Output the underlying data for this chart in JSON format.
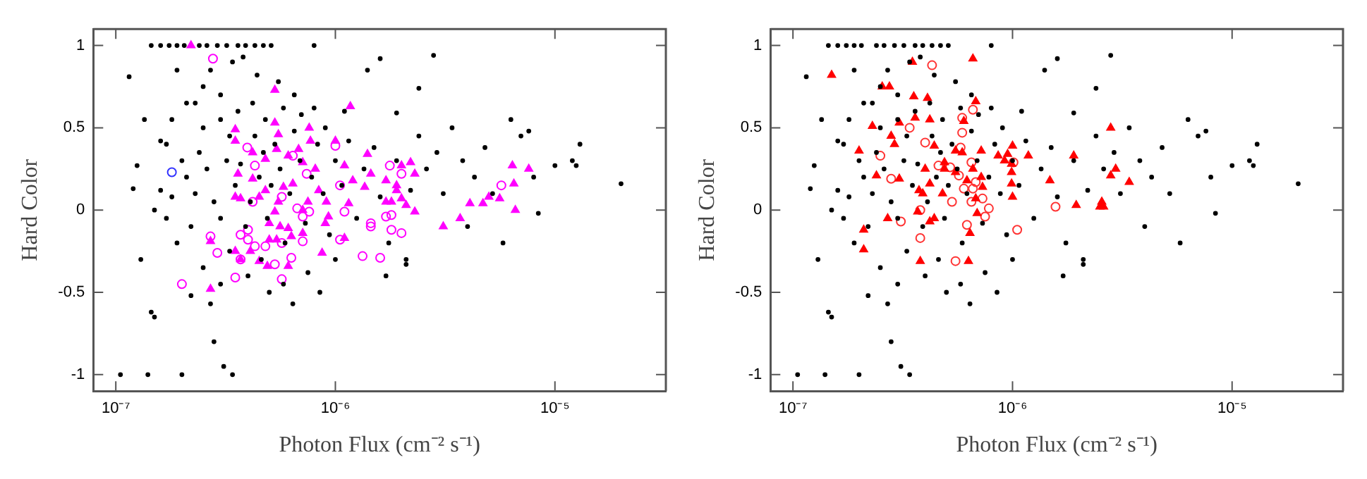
{
  "chart_data": [
    {
      "type": "scatter",
      "xlabel": "Photon Flux (cm⁻² s⁻¹)",
      "ylabel": "Hard Color",
      "log": "x",
      "grid": false,
      "legend": false,
      "xlim": [
        7.9e-08,
        3.2e-05
      ],
      "ylim": [
        -1.1,
        1.1
      ],
      "xticks": [
        {
          "value": 1e-07,
          "label": "10⁻⁷"
        },
        {
          "value": 1e-06,
          "label": "10⁻⁶"
        },
        {
          "value": 1e-05,
          "label": "10⁻⁵"
        }
      ],
      "yticks": [
        -1,
        -0.5,
        0,
        0.5,
        1
      ],
      "series": [
        {
          "color": "#000000",
          "marker": "circle",
          "x": [
            1.45e-07,
            1.6e-07,
            1.75e-07,
            1.9e-07,
            2.05e-07,
            2.4e-07,
            2.6e-07,
            2.9e-07,
            3.2e-07,
            3.6e-07,
            3.9e-07,
            4.3e-07,
            4.7e-07,
            5.1e-07,
            8e-07,
            1.15e-07,
            1.35e-07,
            1.25e-07,
            1.2e-07,
            1.3e-07,
            1.45e-07,
            1.5e-07,
            1.05e-07,
            1.4e-07,
            2e-07,
            3.1e-07,
            3.4e-07,
            2.8e-07,
            2.7e-07,
            2.2e-07,
            1.6e-07,
            1.7e-07,
            1.8e-07,
            1.9e-07,
            2.1e-07,
            2.3e-07,
            2.5e-07,
            2.7e-07,
            3e-07,
            3.4e-07,
            3.8e-07,
            4.4e-07,
            5.5e-07,
            6.5e-07,
            8e-07,
            1.6e-06,
            2.8e-06,
            1.4e-06,
            2.4e-06,
            1.1e-06,
            1.9e-06,
            1.5e-07,
            1.6e-07,
            1.7e-07,
            1.8e-07,
            1.9e-07,
            2e-07,
            2.1e-07,
            2.2e-07,
            2.3e-07,
            2.4e-07,
            2.6e-07,
            2.8e-07,
            3e-07,
            3.2e-07,
            3.3e-07,
            3.5e-07,
            3.7e-07,
            3.9e-07,
            4.1e-07,
            4.3e-07,
            4.5e-07,
            4.7e-07,
            4.9e-07,
            5.1e-07,
            5.3e-07,
            5.6e-07,
            5.9e-07,
            6.2e-07,
            6.5e-07,
            6.9e-07,
            7.3e-07,
            7.8e-07,
            8.3e-07,
            8.8e-07,
            9.4e-07,
            1e-06,
            1.07e-06,
            1.15e-06,
            1.25e-06,
            1.35e-06,
            1.5e-06,
            1.6e-06,
            1.75e-06,
            1.9e-06,
            2.1e-06,
            2.2e-06,
            2.4e-06,
            2.6e-06,
            2.9e-06,
            3.1e-06,
            3.4e-06,
            3.8e-06,
            4e-06,
            4.3e-06,
            4.8e-06,
            5.2e-06,
            5.8e-06,
            6.3e-06,
            7e-06,
            7.6e-06,
            8.4e-06,
            8e-06,
            1e-05,
            1.2e-05,
            1.3e-05,
            1.25e-05,
            2e-05,
            2.5e-07,
            3e-07,
            3.3e-07,
            4e-07,
            4.6e-07,
            5e-07,
            5.8e-07,
            6.4e-07,
            7.5e-07,
            8.5e-07,
            1.7e-06,
            1e-06,
            2.1e-06,
            3.6e-07,
            4.2e-07,
            4.8e-07,
            5.8e-07,
            7e-07,
            3e-07,
            2.5e-07,
            9e-07
          ],
          "values": [
            1,
            1,
            1,
            1,
            1,
            1,
            1,
            1,
            1,
            1,
            1,
            1,
            1,
            1,
            1,
            0.81,
            0.55,
            0.27,
            0.13,
            -0.3,
            -0.62,
            -0.65,
            -1,
            -1,
            -1,
            -0.95,
            -1,
            -0.8,
            -0.57,
            -0.52,
            0.42,
            0.4,
            0.55,
            0.85,
            0.65,
            0.65,
            0.75,
            0.85,
            0.7,
            0.9,
            0.93,
            0.82,
            0.78,
            0.7,
            0.62,
            0.92,
            0.94,
            0.85,
            0.74,
            0.6,
            0.59,
            0.0,
            0.12,
            -0.05,
            0.08,
            -0.2,
            0.3,
            0.2,
            -0.1,
            0.1,
            0.35,
            0.25,
            0.05,
            -0.05,
            0.3,
            0.45,
            0.15,
            0.28,
            -0.1,
            0.05,
            0.45,
            0.2,
            0.35,
            -0.05,
            0.15,
            0.4,
            0.25,
            -0.2,
            0.1,
            0.48,
            0.3,
            -0.08,
            0.2,
            0.4,
            0.1,
            -0.15,
            0.3,
            0.15,
            0.42,
            -0.05,
            0.25,
            0.38,
            0.08,
            -0.2,
            0.3,
            -0.3,
            0.12,
            0.45,
            0.25,
            0.35,
            0.1,
            0.5,
            0.3,
            -0.1,
            0.2,
            0.38,
            0.1,
            -0.2,
            0.55,
            0.45,
            0.48,
            -0.02,
            0.2,
            0.27,
            0.3,
            0.4,
            0.27,
            0.16,
            -0.35,
            -0.45,
            -0.25,
            -0.4,
            -0.3,
            -0.5,
            -0.45,
            -0.57,
            -0.38,
            -0.5,
            -0.4,
            -0.3,
            -0.33,
            0.6,
            0.65,
            0.55,
            0.62,
            0.58,
            0.55,
            0.5,
            0.5
          ]
        },
        {
          "color": "#ff00ff",
          "marker": "triangle",
          "x": [
            2.2e-07,
            5.3e-07,
            1.17e-06,
            3.5e-07,
            5.3e-07,
            7.6e-07,
            5.5e-07,
            3.5e-07,
            7.7e-07,
            1e-06,
            4.2e-07,
            5.4e-07,
            6.8e-07,
            1.4e-06,
            4.8e-07,
            6.1e-07,
            7.1e-07,
            8.1e-07,
            1.1e-06,
            2.2e-06,
            2e-06,
            1.45e-06,
            2.3e-06,
            6.4e-06,
            7.6e-06,
            6.5e-06,
            3.6e-07,
            4.2e-07,
            4.8e-07,
            5.8e-07,
            6.4e-07,
            8.4e-07,
            1.2e-06,
            1.36e-06,
            1.7e-06,
            1.9e-06,
            1.9e-06,
            3.5e-07,
            3.7e-07,
            4.5e-07,
            5.5e-07,
            7.5e-07,
            9.1e-07,
            1.15e-06,
            1.7e-06,
            1.8e-06,
            2e-06,
            2.1e-06,
            4.1e-06,
            4.7e-06,
            5e-06,
            5.6e-06,
            6.6e-06,
            2.3e-06,
            3.7e-06,
            3.1e-06,
            5.3e-07,
            7.1e-07,
            9.3e-07,
            5e-07,
            5.6e-07,
            6.1e-07,
            7.1e-07,
            9e-07,
            1.1e-06,
            5e-07,
            5.4e-07,
            6.3e-07,
            4.1e-07,
            3.5e-07,
            3.7e-07,
            4.5e-07,
            4.9e-07,
            6.1e-07,
            2.7e-07,
            2.7e-07,
            8.7e-07
          ],
          "values": [
            1.0,
            0.73,
            0.63,
            0.49,
            0.53,
            0.5,
            0.46,
            0.42,
            0.42,
            0.42,
            0.35,
            0.37,
            0.37,
            0.34,
            0.31,
            0.33,
            0.29,
            0.25,
            0.27,
            0.29,
            0.27,
            0.22,
            0.22,
            0.27,
            0.25,
            0.16,
            0.22,
            0.19,
            0.12,
            0.14,
            0.16,
            0.12,
            0.18,
            0.14,
            0.18,
            0.15,
            0.12,
            0.08,
            0.07,
            0.08,
            0.05,
            0.05,
            0.05,
            0.04,
            0.05,
            0.05,
            0.07,
            0.03,
            0.04,
            0.04,
            0.08,
            0.07,
            0.0,
            -0.01,
            -0.05,
            -0.1,
            -0.01,
            0.0,
            -0.04,
            -0.08,
            -0.1,
            -0.11,
            -0.14,
            -0.08,
            -0.17,
            -0.18,
            -0.18,
            -0.16,
            -0.25,
            -0.25,
            -0.3,
            -0.31,
            -0.34,
            -0.34,
            -0.48,
            -0.19,
            -0.26
          ]
        },
        {
          "color": "#ff00ff",
          "marker": "circle",
          "x": [
            2.77e-07,
            3.97e-07,
            1e-06,
            6.4e-07,
            7.4e-07,
            1.77e-06,
            2e-06,
            1.05e-06,
            5.7e-06,
            5.7e-07,
            4.2e-07,
            6.7e-07,
            7.6e-07,
            7.1e-07,
            1.1e-06,
            1.45e-06,
            1.7e-06,
            1.8e-06,
            1.8e-06,
            2e-06,
            1.45e-06,
            1.05e-06,
            4e-07,
            3.7e-07,
            4e-07,
            4.8e-07,
            4.3e-07,
            7.1e-07,
            5.7e-07,
            2.7e-07,
            2.9e-07,
            3.7e-07,
            5.3e-07,
            6.3e-07,
            5.7e-07,
            3.5e-07,
            2e-07,
            1.33e-06,
            1.6e-06,
            4.3e-07
          ],
          "values": [
            0.92,
            0.38,
            0.39,
            0.33,
            0.22,
            0.27,
            0.22,
            0.15,
            0.15,
            0.08,
            0.05,
            0.01,
            -0.01,
            -0.04,
            -0.01,
            -0.08,
            -0.04,
            -0.03,
            -0.12,
            -0.14,
            -0.1,
            -0.18,
            -0.12,
            -0.15,
            -0.18,
            -0.22,
            -0.22,
            -0.19,
            -0.2,
            -0.16,
            -0.26,
            -0.3,
            -0.33,
            -0.29,
            -0.42,
            -0.41,
            -0.45,
            -0.28,
            -0.29,
            0.27
          ]
        },
        {
          "color": "#3333ff",
          "marker": "circle",
          "x": [
            1.8e-07
          ],
          "values": [
            0.23
          ]
        }
      ]
    },
    {
      "type": "scatter",
      "xlabel": "Photon Flux (cm⁻² s⁻¹)",
      "ylabel": "Hard Color",
      "log": "x",
      "grid": false,
      "legend": false,
      "xlim": [
        7.9e-08,
        3.2e-05
      ],
      "ylim": [
        -1.1,
        1.1
      ],
      "xticks": [
        {
          "value": 1e-07,
          "label": "10⁻⁷"
        },
        {
          "value": 1e-06,
          "label": "10⁻⁶"
        },
        {
          "value": 1e-05,
          "label": "10⁻⁵"
        }
      ],
      "yticks": [
        -1,
        -0.5,
        0,
        0.5,
        1
      ],
      "series": [
        {
          "color": "#000000",
          "marker": "circle",
          "x": [
            1.45e-07,
            1.6e-07,
            1.75e-07,
            1.9e-07,
            2.05e-07,
            2.4e-07,
            2.6e-07,
            2.9e-07,
            3.2e-07,
            3.6e-07,
            3.9e-07,
            4.3e-07,
            4.7e-07,
            5.1e-07,
            8e-07,
            1.15e-07,
            1.35e-07,
            1.25e-07,
            1.2e-07,
            1.3e-07,
            1.45e-07,
            1.5e-07,
            1.05e-07,
            1.4e-07,
            2e-07,
            3.1e-07,
            3.4e-07,
            2.8e-07,
            2.7e-07,
            2.2e-07,
            1.6e-07,
            1.7e-07,
            1.8e-07,
            1.9e-07,
            2.1e-07,
            2.3e-07,
            2.5e-07,
            2.7e-07,
            3e-07,
            3.4e-07,
            3.8e-07,
            4.4e-07,
            5.5e-07,
            6.5e-07,
            8e-07,
            1.6e-06,
            2.8e-06,
            1.4e-06,
            2.4e-06,
            1.1e-06,
            1.9e-06,
            1.5e-07,
            1.6e-07,
            1.7e-07,
            1.8e-07,
            1.9e-07,
            2e-07,
            2.1e-07,
            2.2e-07,
            2.3e-07,
            2.4e-07,
            2.6e-07,
            2.8e-07,
            3e-07,
            3.2e-07,
            3.3e-07,
            3.5e-07,
            3.7e-07,
            3.9e-07,
            4.1e-07,
            4.3e-07,
            4.5e-07,
            4.7e-07,
            4.9e-07,
            5.1e-07,
            5.3e-07,
            5.6e-07,
            5.9e-07,
            6.2e-07,
            6.5e-07,
            6.9e-07,
            7.3e-07,
            7.8e-07,
            8.3e-07,
            8.8e-07,
            9.4e-07,
            1e-06,
            1.07e-06,
            1.15e-06,
            1.25e-06,
            1.35e-06,
            1.5e-06,
            1.6e-06,
            1.75e-06,
            1.9e-06,
            2.1e-06,
            2.2e-06,
            2.4e-06,
            2.6e-06,
            2.9e-06,
            3.1e-06,
            3.4e-06,
            3.8e-06,
            4e-06,
            4.3e-06,
            4.8e-06,
            5.2e-06,
            5.8e-06,
            6.3e-06,
            7e-06,
            7.6e-06,
            8.4e-06,
            8e-06,
            1e-05,
            1.2e-05,
            1.3e-05,
            1.25e-05,
            2e-05,
            2.5e-07,
            3e-07,
            3.3e-07,
            4e-07,
            4.6e-07,
            5e-07,
            5.8e-07,
            6.4e-07,
            7.5e-07,
            8.5e-07,
            1.7e-06,
            1e-06,
            2.1e-06,
            3.6e-07,
            4.2e-07,
            4.8e-07,
            5.8e-07,
            7e-07,
            3e-07,
            2.5e-07,
            9e-07
          ],
          "values": [
            1,
            1,
            1,
            1,
            1,
            1,
            1,
            1,
            1,
            1,
            1,
            1,
            1,
            1,
            1,
            0.81,
            0.55,
            0.27,
            0.13,
            -0.3,
            -0.62,
            -0.65,
            -1,
            -1,
            -1,
            -0.95,
            -1,
            -0.8,
            -0.57,
            -0.52,
            0.42,
            0.4,
            0.55,
            0.85,
            0.65,
            0.65,
            0.75,
            0.85,
            0.7,
            0.9,
            0.93,
            0.82,
            0.78,
            0.7,
            0.62,
            0.92,
            0.94,
            0.85,
            0.74,
            0.6,
            0.59,
            0.0,
            0.12,
            -0.05,
            0.08,
            -0.2,
            0.3,
            0.2,
            -0.1,
            0.1,
            0.35,
            0.25,
            0.05,
            -0.05,
            0.3,
            0.45,
            0.15,
            0.28,
            -0.1,
            0.05,
            0.45,
            0.2,
            0.35,
            -0.05,
            0.15,
            0.4,
            0.25,
            -0.2,
            0.1,
            0.48,
            0.3,
            -0.08,
            0.2,
            0.4,
            0.1,
            -0.15,
            0.3,
            0.15,
            0.42,
            -0.05,
            0.25,
            0.38,
            0.08,
            -0.2,
            0.3,
            -0.3,
            0.12,
            0.45,
            0.25,
            0.35,
            0.1,
            0.5,
            0.3,
            -0.1,
            0.2,
            0.38,
            0.1,
            -0.2,
            0.55,
            0.45,
            0.48,
            -0.02,
            0.2,
            0.27,
            0.3,
            0.4,
            0.27,
            0.16,
            -0.35,
            -0.45,
            -0.25,
            -0.4,
            -0.3,
            -0.5,
            -0.45,
            -0.57,
            -0.38,
            -0.5,
            -0.4,
            -0.3,
            -0.33,
            0.6,
            0.65,
            0.55,
            0.62,
            0.58,
            0.55,
            0.5,
            0.5
          ]
        },
        {
          "color": "#ff0000",
          "marker": "triangle",
          "x": [
            1.5e-07,
            2.55e-07,
            2.75e-07,
            3.5e-07,
            6.6e-07,
            3.55e-07,
            4.1e-07,
            6.8e-07,
            3.6e-07,
            4.2e-07,
            3.05e-07,
            2.3e-07,
            6e-07,
            2.8e-06,
            2e-07,
            2.9e-07,
            2.8e-07,
            4.4e-07,
            5.9e-07,
            5.5e-07,
            7.2e-07,
            8.6e-07,
            9.5e-07,
            1e-06,
            1.18e-06,
            1.9e-06,
            9.2e-07,
            9.9e-07,
            2.4e-07,
            3.05e-07,
            4e-07,
            4.9e-07,
            5.5e-07,
            6.6e-07,
            9.9e-07,
            2.8e-06,
            2.95e-06,
            3.4e-06,
            1.48e-06,
            6.2e-07,
            7.2e-07,
            3.75e-07,
            4.2e-07,
            4.8e-07,
            3.9e-07,
            6.8e-07,
            7.3e-07,
            9.9e-07,
            1e-06,
            1.95e-06,
            2.55e-06,
            2.5e-06,
            2.6e-06,
            3.7e-07,
            2.7e-07,
            4.2e-07,
            4.4e-07,
            6.9e-07,
            2.1e-07,
            6.4e-07,
            2.1e-07,
            3.8e-07,
            6.3e-07,
            4.9e-07
          ],
          "values": [
            0.82,
            0.75,
            0.75,
            0.9,
            0.92,
            0.69,
            0.68,
            0.66,
            0.56,
            0.55,
            0.53,
            0.51,
            0.54,
            0.5,
            0.36,
            0.4,
            0.45,
            0.39,
            0.35,
            0.36,
            0.36,
            0.33,
            0.34,
            0.39,
            0.33,
            0.33,
            0.3,
            0.28,
            0.21,
            0.19,
            0.25,
            0.25,
            0.23,
            0.25,
            0.23,
            0.21,
            0.25,
            0.17,
            0.18,
            0.18,
            0.2,
            0.12,
            0.16,
            0.1,
            0.1,
            0.07,
            0.14,
            0.16,
            0.08,
            0.03,
            0.05,
            0.02,
            0.02,
            -0.01,
            -0.05,
            -0.07,
            -0.05,
            -0.02,
            -0.12,
            -0.14,
            -0.24,
            -0.31,
            -0.31,
            0.29
          ]
        },
        {
          "color": "#ff3333",
          "marker": "circle",
          "x": [
            2.5e-07,
            4.3e-07,
            6.6e-07,
            3.4e-07,
            5.9e-07,
            5.9e-07,
            4e-07,
            5.8e-07,
            6.5e-07,
            1.01e-06,
            5.2e-07,
            4.6e-07,
            5.7e-07,
            2.8e-07,
            6.8e-07,
            6.6e-07,
            6e-07,
            7.3e-07,
            6.5e-07,
            5.3e-07,
            7.8e-07,
            1.57e-06,
            7.5e-07,
            3.8e-07,
            3.1e-07,
            3.8e-07,
            6.2e-07,
            1.05e-06,
            5.5e-07
          ],
          "values": [
            0.33,
            0.88,
            0.61,
            0.5,
            0.56,
            0.47,
            0.41,
            0.38,
            0.29,
            0.29,
            0.26,
            0.27,
            0.21,
            0.19,
            0.17,
            0.13,
            0.13,
            0.07,
            0.05,
            0.05,
            0.01,
            0.02,
            -0.04,
            0.0,
            -0.07,
            -0.17,
            -0.09,
            -0.12,
            -0.31
          ]
        }
      ]
    }
  ]
}
